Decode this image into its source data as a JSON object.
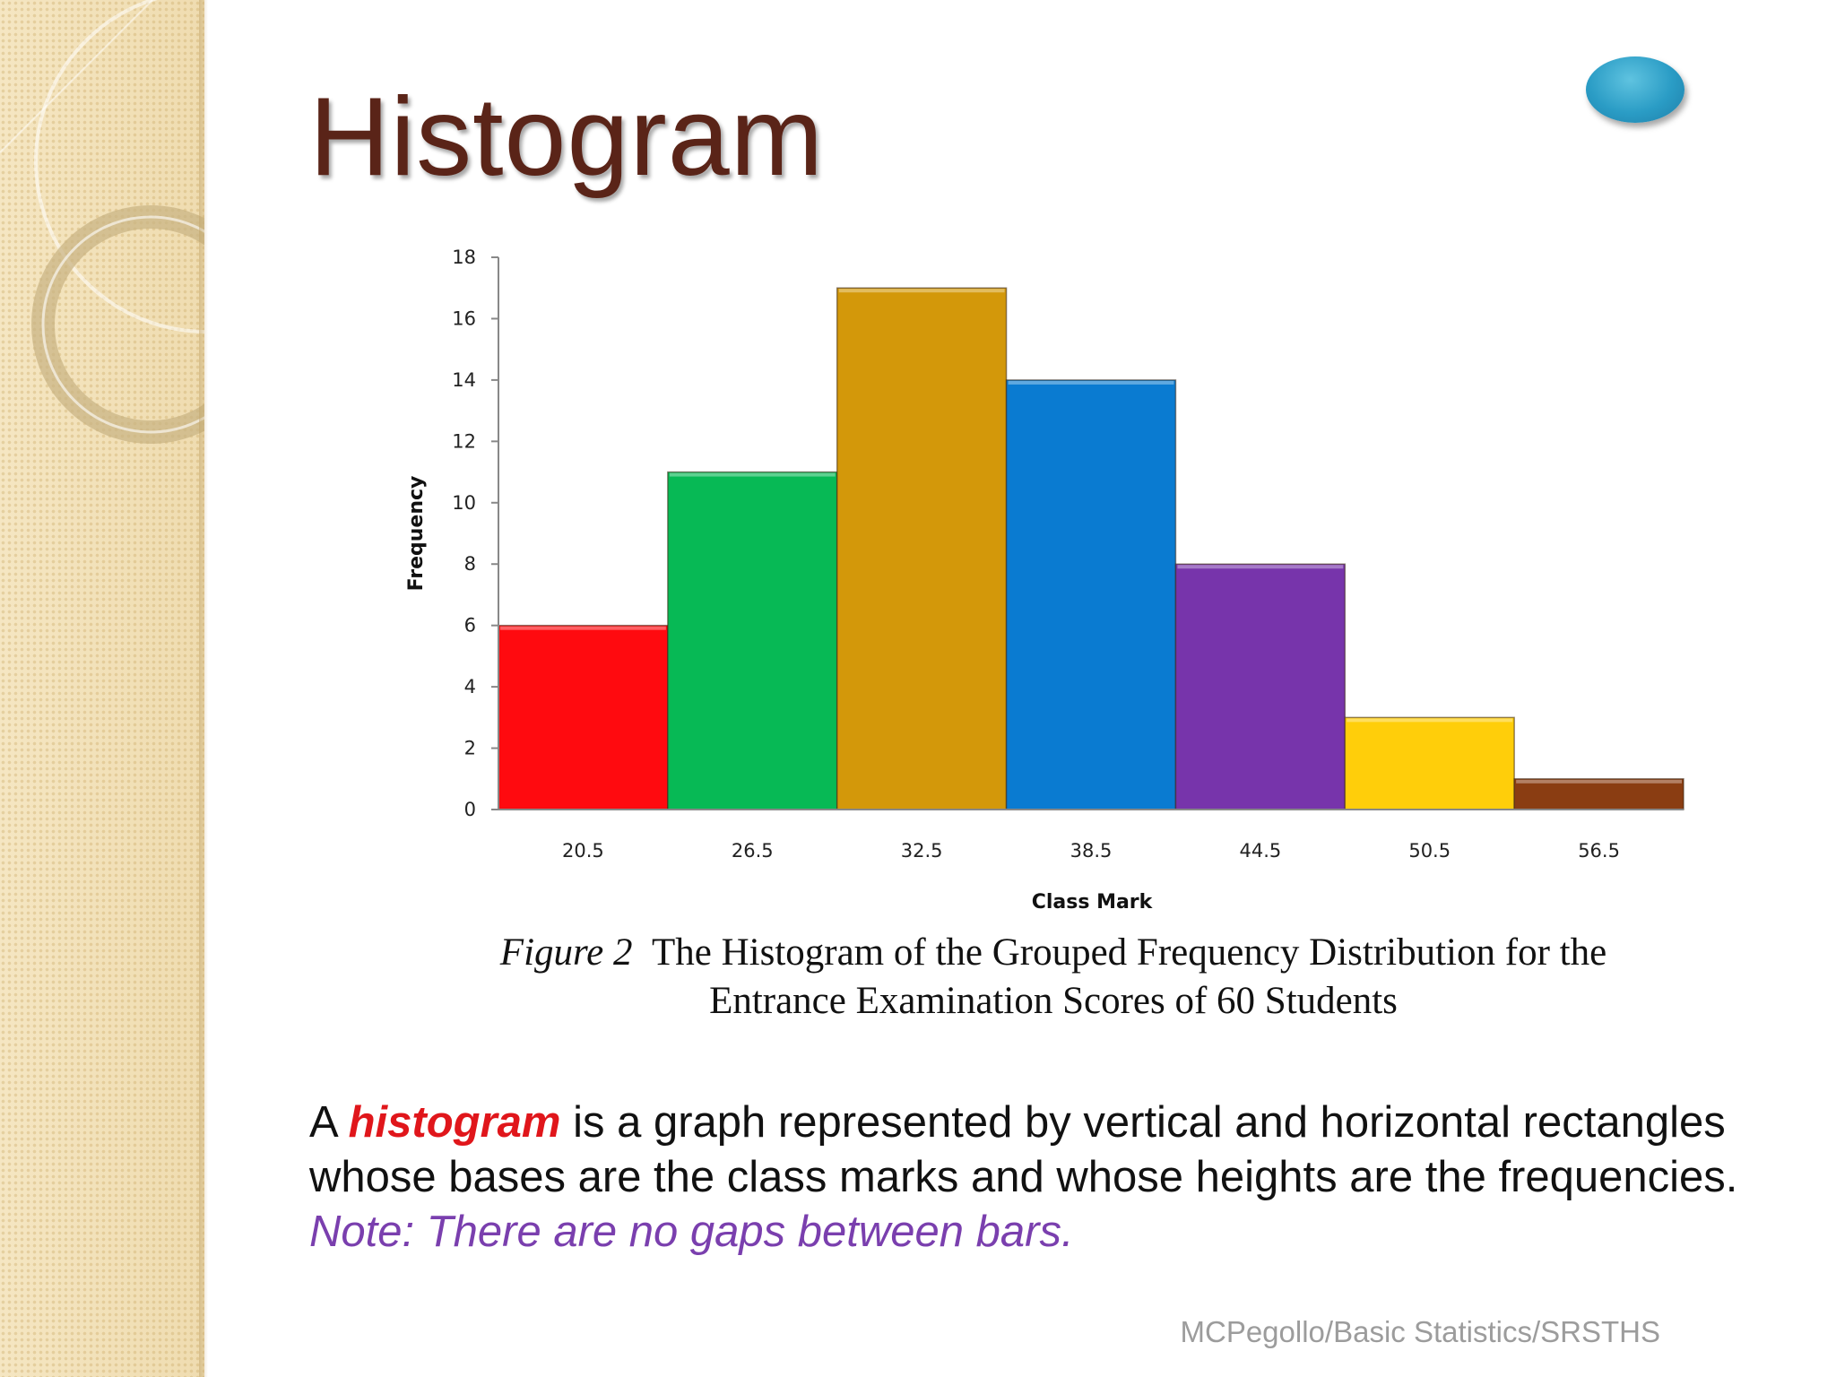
{
  "slide": {
    "title": "Histogram",
    "caption": {
      "figure_label": "Figure 2",
      "text_line1": "The Histogram of the Grouped Frequency Distribution for the",
      "text_line2": "Entrance Examination Scores of 60 Students"
    },
    "body": {
      "part1": "A ",
      "keyword": "histogram",
      "part2": " is a graph represented by vertical and horizontal rectangles whose bases are the class marks and whose heights are the frequencies.",
      "note": "Note:  There are no gaps between bars."
    },
    "footer": "MCPegollo/Basic Statistics/SRSTHS",
    "colors": {
      "title": "#5a2418",
      "keyword": "#e0161b",
      "note": "#7a3fae",
      "oval": "#2a9cc5"
    }
  },
  "chart_data": {
    "type": "bar",
    "categories": [
      "20.5",
      "26.5",
      "32.5",
      "38.5",
      "44.5",
      "50.5",
      "56.5"
    ],
    "values": [
      6,
      11,
      17,
      14,
      8,
      3,
      1
    ],
    "bar_colors": [
      "#ff0a0f",
      "#07b955",
      "#d3980a",
      "#0a7bd1",
      "#7734ab",
      "#ffce0a",
      "#8a3d12"
    ],
    "xlabel": "Class Mark",
    "ylabel": "Frequency",
    "ylim": [
      0,
      18
    ],
    "yticks": [
      "0",
      "2",
      "4",
      "6",
      "8",
      "10",
      "12",
      "14",
      "16",
      "18"
    ],
    "grid": false,
    "legend": "none",
    "gap_between_bars": false
  }
}
